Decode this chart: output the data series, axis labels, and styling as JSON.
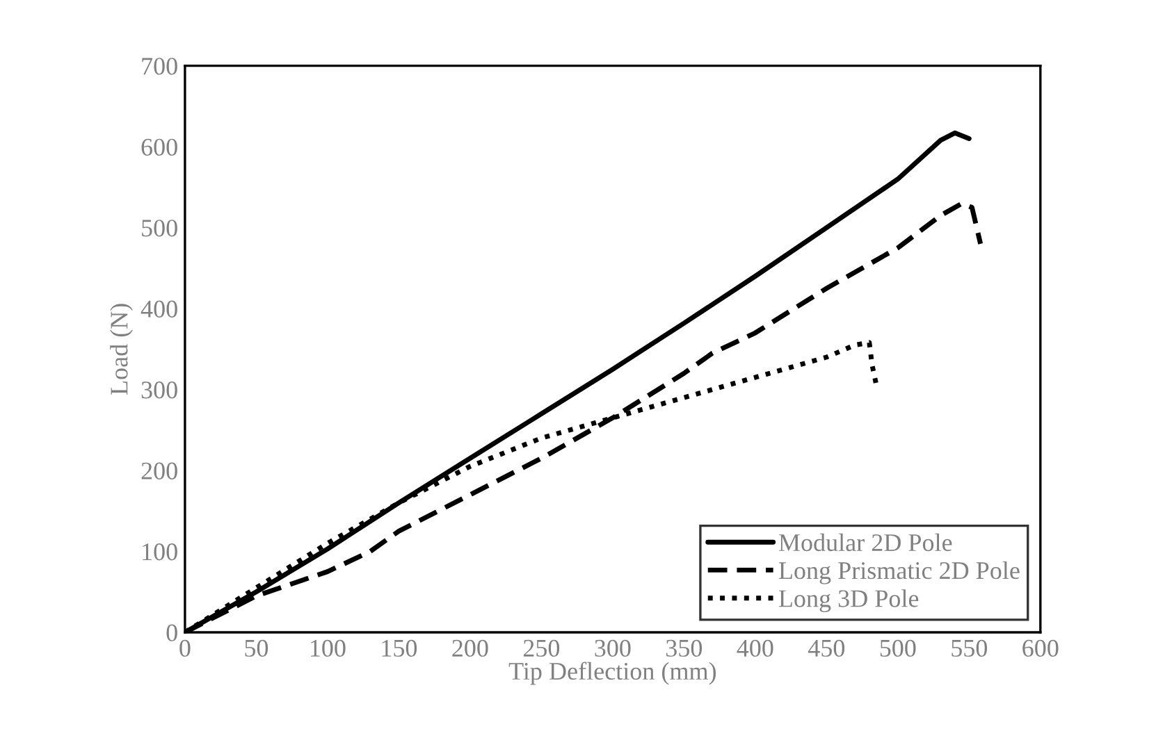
{
  "chart_data": {
    "type": "line",
    "xlabel": "Tip Deflection (mm)",
    "ylabel": "Load (N)",
    "xlim": [
      0,
      600
    ],
    "ylim": [
      0,
      700
    ],
    "xticks": [
      0,
      50,
      100,
      150,
      200,
      250,
      300,
      350,
      400,
      450,
      500,
      550,
      600
    ],
    "yticks": [
      0,
      100,
      200,
      300,
      400,
      500,
      600,
      700
    ],
    "grid": false,
    "legend": "bottom right",
    "series": [
      {
        "name": "Modular 2D Pole",
        "color": "#000000",
        "line_style": "solid",
        "x": [
          0,
          50,
          100,
          150,
          200,
          250,
          300,
          350,
          400,
          450,
          500,
          530,
          540,
          550
        ],
        "values": [
          0,
          50,
          103,
          160,
          215,
          270,
          325,
          382,
          440,
          500,
          560,
          608,
          617,
          610
        ]
      },
      {
        "name": "Long Prismatic 2D Pole",
        "color": "#000000",
        "line_style": "dashed",
        "x": [
          0,
          50,
          100,
          130,
          150,
          200,
          250,
          300,
          350,
          370,
          400,
          450,
          500,
          530,
          545,
          552,
          558
        ],
        "values": [
          0,
          45,
          75,
          100,
          125,
          170,
          215,
          265,
          320,
          345,
          370,
          425,
          475,
          515,
          530,
          525,
          480
        ]
      },
      {
        "name": "Long 3D Pole",
        "color": "#000000",
        "line_style": "dotted",
        "x": [
          0,
          50,
          100,
          150,
          200,
          250,
          300,
          350,
          400,
          450,
          470,
          480,
          482,
          485
        ],
        "values": [
          0,
          55,
          110,
          160,
          205,
          240,
          265,
          290,
          315,
          340,
          355,
          358,
          330,
          305
        ]
      }
    ]
  }
}
